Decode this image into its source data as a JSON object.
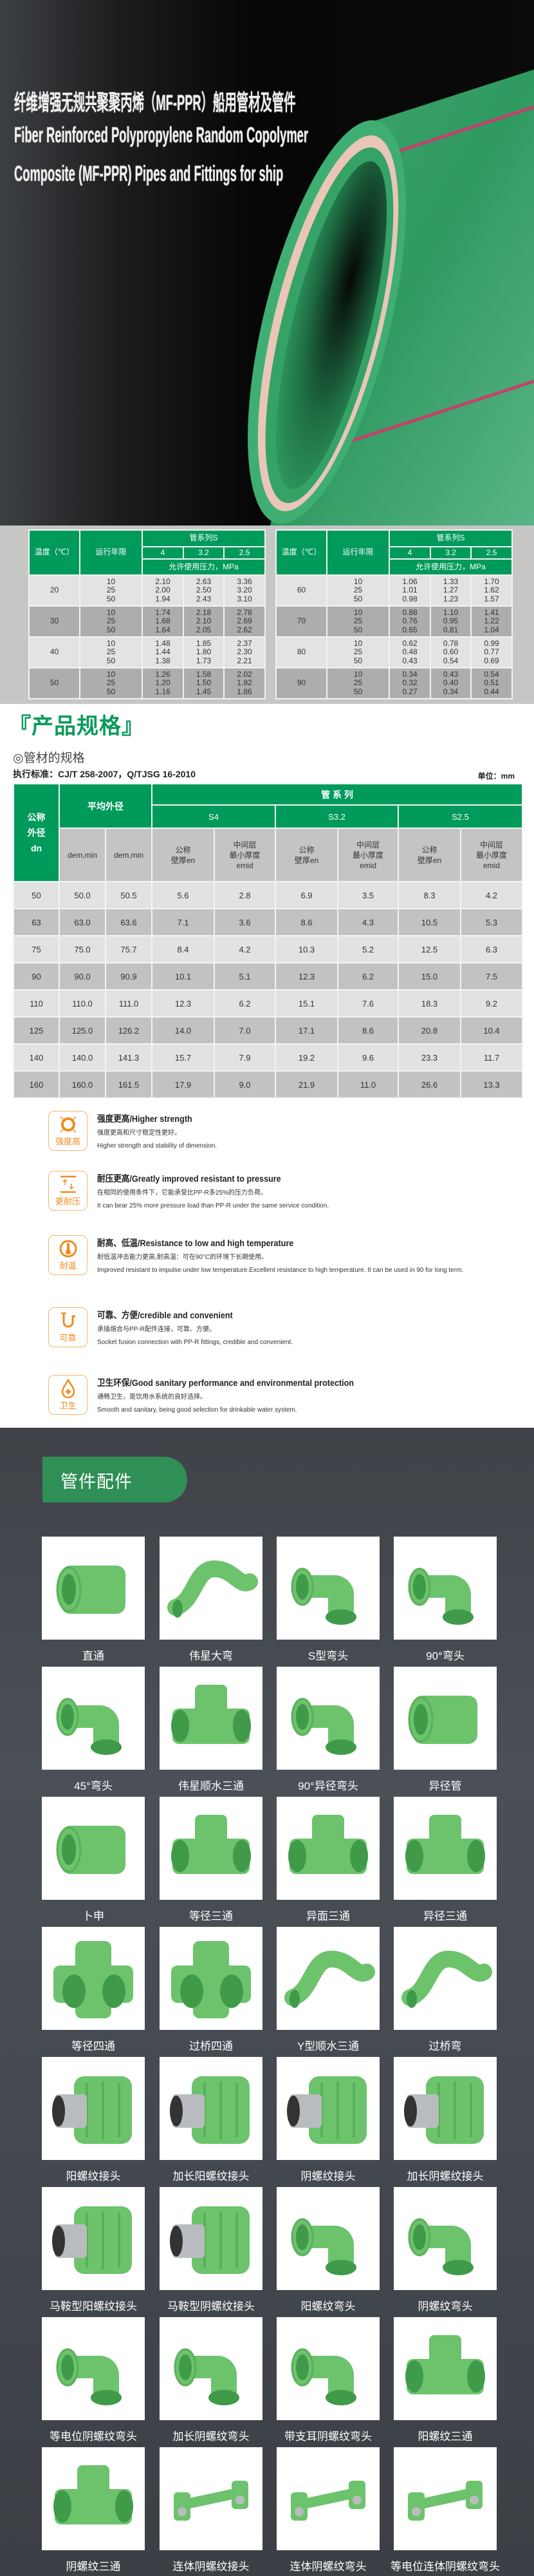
{
  "hero": {
    "title_cn": "纤维增强无规共聚聚丙烯（MF-PPR）船用管材及管件",
    "title_en_1": "Fiber Reinforced Polypropylene Random Copolymer",
    "title_en_2": "Composite (MF-PPR) Pipes and Fittings for ship"
  },
  "pressure": {
    "temp_label": "温度（℃）",
    "years_label": "运行年限",
    "series_label": "管系列S",
    "series": [
      "4",
      "3.2",
      "2.5"
    ],
    "pressure_label": "允许使用压力，MPa",
    "tables": [
      {
        "rows": [
          {
            "temp": "20",
            "years": [
              "10",
              "25",
              "50"
            ],
            "s4": [
              "2.10",
              "2.00",
              "1.94"
            ],
            "s32": [
              "2.63",
              "2.50",
              "2.43"
            ],
            "s25": [
              "3.36",
              "3.20",
              "3.10"
            ]
          },
          {
            "temp": "30",
            "years": [
              "10",
              "25",
              "50"
            ],
            "s4": [
              "1.74",
              "1.68",
              "1.64"
            ],
            "s32": [
              "2.18",
              "2.10",
              "2.05"
            ],
            "s25": [
              "2.78",
              "2.69",
              "2.62"
            ]
          },
          {
            "temp": "40",
            "years": [
              "10",
              "25",
              "50"
            ],
            "s4": [
              "1.48",
              "1.44",
              "1.38"
            ],
            "s32": [
              "1.85",
              "1.80",
              "1.73"
            ],
            "s25": [
              "2.37",
              "2.30",
              "2.21"
            ]
          },
          {
            "temp": "50",
            "years": [
              "10",
              "25",
              "50"
            ],
            "s4": [
              "1.26",
              "1.20",
              "1.16"
            ],
            "s32": [
              "1.58",
              "1.50",
              "1.45"
            ],
            "s25": [
              "2.02",
              "1.92",
              "1.86"
            ]
          }
        ]
      },
      {
        "rows": [
          {
            "temp": "60",
            "years": [
              "10",
              "25",
              "50"
            ],
            "s4": [
              "1.06",
              "1.01",
              "0.98"
            ],
            "s32": [
              "1.33",
              "1.27",
              "1.23"
            ],
            "s25": [
              "1.70",
              "1.62",
              "1.57"
            ]
          },
          {
            "temp": "70",
            "years": [
              "10",
              "25",
              "50"
            ],
            "s4": [
              "0.88",
              "0.76",
              "0.65"
            ],
            "s32": [
              "1.10",
              "0.95",
              "0.81"
            ],
            "s25": [
              "1.41",
              "1.22",
              "1.04"
            ]
          },
          {
            "temp": "80",
            "years": [
              "10",
              "25",
              "50"
            ],
            "s4": [
              "0.62",
              "0.48",
              "0.43"
            ],
            "s32": [
              "0.78",
              "0.60",
              "0.54"
            ],
            "s25": [
              "0.99",
              "0.77",
              "0.69"
            ]
          },
          {
            "temp": "90",
            "years": [
              "10",
              "25",
              "50"
            ],
            "s4": [
              "0.34",
              "0.32",
              "0.27"
            ],
            "s32": [
              "0.43",
              "0.40",
              "0.34"
            ],
            "s25": [
              "0.54",
              "0.51",
              "0.44"
            ]
          }
        ]
      }
    ]
  },
  "spec": {
    "bracket_open": "『",
    "title": "产品规格",
    "bracket_close": "』",
    "subtitle": "◎管材的规格",
    "standard": "执行标准：CJ/T 258-2007，Q/TJSG 16-2010",
    "unit": "单位：mm",
    "h_dn": [
      "公称",
      "外径",
      "dn"
    ],
    "h_avg": "平均外径",
    "h_series": "管 系 列",
    "series": [
      "S4",
      "S3.2",
      "S2.5"
    ],
    "h_dem1": "dem,min",
    "h_dem2": "dem,min",
    "h_en": [
      "公称",
      "壁厚en"
    ],
    "h_emid": [
      "中间层",
      "最小厚度",
      "emid"
    ],
    "rows": [
      [
        "50",
        "50.0",
        "50.5",
        "5.6",
        "2.8",
        "6.9",
        "3.5",
        "8.3",
        "4.2"
      ],
      [
        "63",
        "63.0",
        "63.6",
        "7.1",
        "3.6",
        "8.6",
        "4.3",
        "10.5",
        "5.3"
      ],
      [
        "75",
        "75.0",
        "75.7",
        "8.4",
        "4.2",
        "10.3",
        "5.2",
        "12.5",
        "6.3"
      ],
      [
        "90",
        "90.0",
        "90.9",
        "10.1",
        "5.1",
        "12.3",
        "6.2",
        "15.0",
        "7.5"
      ],
      [
        "110",
        "110.0",
        "111.0",
        "12.3",
        "6.2",
        "15.1",
        "7.6",
        "18.3",
        "9.2"
      ],
      [
        "125",
        "125.0",
        "126.2",
        "14.0",
        "7.0",
        "17.1",
        "8.6",
        "20.8",
        "10.4"
      ],
      [
        "140",
        "140.0",
        "141.3",
        "15.7",
        "7.9",
        "19.2",
        "9.6",
        "23.3",
        "11.7"
      ],
      [
        "160",
        "160.0",
        "161.5",
        "17.9",
        "9.0",
        "21.9",
        "11.0",
        "26.6",
        "13.3"
      ]
    ]
  },
  "features": [
    {
      "icon": "ring-strength-icon",
      "icon_label": "强度高",
      "title": "强度更高/Higher strength",
      "cn": "强度更高和尺寸稳定性更好。",
      "en": "Higher strength and stability of dimension."
    },
    {
      "icon": "pressure-arrows-icon",
      "icon_label": "更耐压",
      "title": "耐压更高/Greatly improved resistant to pressure",
      "cn": "在相同的使用条件下，它能承受比PP-R多25%的压力负荷。",
      "en": "It can bear 25% more pressure load than PP-R under the same service condition."
    },
    {
      "icon": "thermometer-icon",
      "icon_label": "耐温",
      "title": "耐高、低温/Resistance to low and high temperature",
      "cn": "耐低温冲击能力更高,耐高温：可在90°C的环境下长期使用。",
      "en": "Improved resistant to impulse under low temperature.Excellent resistance to high temperature. It can be used in 90   for long term."
    },
    {
      "icon": "pipe-icon",
      "icon_label": "可靠",
      "title": "可靠、方便/credible and convenient",
      "cn": "承插熔合与PP-R配件连接，可靠、方便。",
      "en": "Socket fusion connection with PP-R fittings, credible and convenient."
    },
    {
      "icon": "water-drop-icon",
      "icon_label": "卫生",
      "title": "卫生环保/Good sanitary performance and environmental protection",
      "cn": "通畅卫生，是饮用水系统的良好选择。",
      "en": "Smooth and sanitary, being good selection for drinkable water system."
    }
  ],
  "fittings": {
    "title": "管件配件",
    "items": [
      {
        "label": "直通",
        "shape": "coupling"
      },
      {
        "label": "伟星大弯",
        "shape": "bend"
      },
      {
        "label": "S型弯头",
        "shape": "elbow"
      },
      {
        "label": "90°弯头",
        "shape": "elbow"
      },
      {
        "label": "45°弯头",
        "shape": "elbow"
      },
      {
        "label": "伟星顺水三通",
        "shape": "tee"
      },
      {
        "label": "90°异径弯头",
        "shape": "elbow"
      },
      {
        "label": "异径管",
        "shape": "coupling"
      },
      {
        "label": "卜申",
        "shape": "coupling"
      },
      {
        "label": "等径三通",
        "shape": "tee"
      },
      {
        "label": "异面三通",
        "shape": "tee"
      },
      {
        "label": "异径三通",
        "shape": "tee"
      },
      {
        "label": "等径四通",
        "shape": "cross"
      },
      {
        "label": "过桥四通",
        "shape": "cross"
      },
      {
        "label": "Y型顺水三通",
        "shape": "bend"
      },
      {
        "label": "过桥弯",
        "shape": "bend"
      },
      {
        "label": "阳螺纹接头",
        "shape": "threaded"
      },
      {
        "label": "加长阳螺纹接头",
        "shape": "threaded"
      },
      {
        "label": "阴螺纹接头",
        "shape": "threaded"
      },
      {
        "label": "加长阴螺纹接头",
        "shape": "threaded"
      },
      {
        "label": "马鞍型阳螺纹接头",
        "shape": "threaded"
      },
      {
        "label": "马鞍型阴螺纹接头",
        "shape": "threaded"
      },
      {
        "label": "阳螺纹弯头",
        "shape": "elbow"
      },
      {
        "label": "阴螺纹弯头",
        "shape": "elbow"
      },
      {
        "label": "等电位阴螺纹弯头",
        "shape": "elbow"
      },
      {
        "label": "加长阴螺纹弯头",
        "shape": "elbow"
      },
      {
        "label": "带支耳阴螺纹弯头",
        "shape": "elbow"
      },
      {
        "label": "阳螺纹三通",
        "shape": "tee"
      },
      {
        "label": "阴螺纹三通",
        "shape": "tee"
      },
      {
        "label": "连体阴螺纹接头",
        "shape": "manifold"
      },
      {
        "label": "连体阴螺纹弯头",
        "shape": "manifold"
      },
      {
        "label": "等电位连体阴螺纹弯头",
        "shape": "manifold"
      }
    ]
  },
  "colors": {
    "table_green": "#009a5b",
    "feature_orange": "#f08a1c",
    "fitting_green": "#6cc36c",
    "badge_green": "#2f8f55"
  }
}
